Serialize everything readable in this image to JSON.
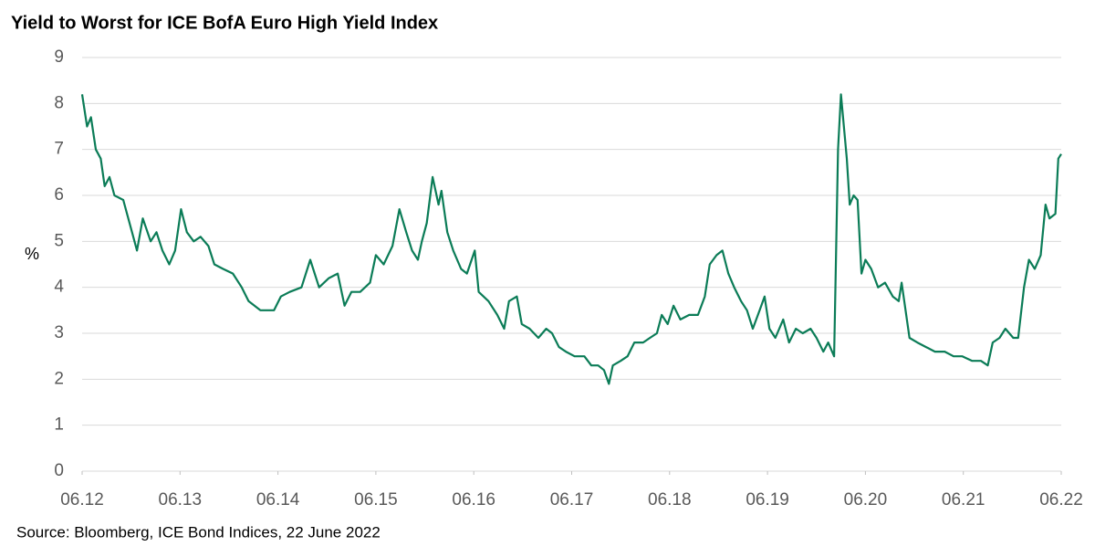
{
  "chart_data": {
    "type": "line",
    "title": "Yield to Worst for ICE BofA Euro High Yield Index",
    "y_label": "%",
    "source": "Source: Bloomberg, ICE Bond Indices, 22 June 2022",
    "color": "#0b7c57",
    "grid": true,
    "x": [
      2012.47,
      2012.52,
      2012.56,
      2012.61,
      2012.66,
      2012.7,
      2012.75,
      2012.8,
      2012.89,
      2012.98,
      2013.03,
      2013.09,
      2013.17,
      2013.23,
      2013.29,
      2013.36,
      2013.42,
      2013.48,
      2013.54,
      2013.61,
      2013.68,
      2013.76,
      2013.82,
      2013.91,
      2014.01,
      2014.1,
      2014.17,
      2014.29,
      2014.43,
      2014.5,
      2014.59,
      2014.71,
      2014.8,
      2014.89,
      2014.99,
      2015.08,
      2015.15,
      2015.22,
      2015.31,
      2015.41,
      2015.47,
      2015.55,
      2015.64,
      2015.71,
      2015.78,
      2015.84,
      2015.9,
      2015.94,
      2015.99,
      2016.05,
      2016.11,
      2016.14,
      2016.2,
      2016.26,
      2016.34,
      2016.4,
      2016.48,
      2016.52,
      2016.62,
      2016.71,
      2016.78,
      2016.83,
      2016.91,
      2016.96,
      2017.04,
      2017.13,
      2017.21,
      2017.27,
      2017.34,
      2017.41,
      2017.5,
      2017.6,
      2017.67,
      2017.74,
      2017.8,
      2017.85,
      2017.89,
      2017.97,
      2018.04,
      2018.11,
      2018.2,
      2018.27,
      2018.34,
      2018.39,
      2018.45,
      2018.51,
      2018.58,
      2018.67,
      2018.76,
      2018.83,
      2018.88,
      2018.95,
      2019.01,
      2019.07,
      2019.13,
      2019.2,
      2019.26,
      2019.32,
      2019.39,
      2019.44,
      2019.49,
      2019.55,
      2019.63,
      2019.69,
      2019.76,
      2019.83,
      2019.91,
      2019.97,
      2020.04,
      2020.09,
      2020.15,
      2020.19,
      2020.22,
      2020.25,
      2020.28,
      2020.31,
      2020.35,
      2020.39,
      2020.43,
      2020.47,
      2020.53,
      2020.6,
      2020.67,
      2020.75,
      2020.81,
      2020.84,
      2020.88,
      2020.92,
      2021.0,
      2021.09,
      2021.18,
      2021.28,
      2021.37,
      2021.46,
      2021.56,
      2021.65,
      2021.72,
      2021.77,
      2021.84,
      2021.9,
      2021.98,
      2022.03,
      2022.09,
      2022.14,
      2022.2,
      2022.26,
      2022.31,
      2022.35,
      2022.41,
      2022.44,
      2022.47
    ],
    "values": [
      8.2,
      7.5,
      7.7,
      7.0,
      6.8,
      6.2,
      6.4,
      6.0,
      5.9,
      5.2,
      4.8,
      5.5,
      5.0,
      5.2,
      4.8,
      4.5,
      4.8,
      5.7,
      5.2,
      5.0,
      5.1,
      4.9,
      4.5,
      4.4,
      4.3,
      4.0,
      3.7,
      3.5,
      3.5,
      3.8,
      3.9,
      4.0,
      4.6,
      4.0,
      4.2,
      4.3,
      3.6,
      3.9,
      3.9,
      4.1,
      4.7,
      4.5,
      4.9,
      5.7,
      5.2,
      4.8,
      4.6,
      5.0,
      5.4,
      6.4,
      5.8,
      6.1,
      5.2,
      4.8,
      4.4,
      4.3,
      4.8,
      3.9,
      3.7,
      3.4,
      3.1,
      3.7,
      3.8,
      3.2,
      3.1,
      2.9,
      3.1,
      3.0,
      2.7,
      2.6,
      2.5,
      2.5,
      2.3,
      2.3,
      2.2,
      1.9,
      2.3,
      2.4,
      2.5,
      2.8,
      2.8,
      2.9,
      3.0,
      3.4,
      3.2,
      3.6,
      3.3,
      3.4,
      3.4,
      3.8,
      4.5,
      4.7,
      4.8,
      4.3,
      4.0,
      3.7,
      3.5,
      3.1,
      3.5,
      3.8,
      3.1,
      2.9,
      3.3,
      2.8,
      3.1,
      3.0,
      3.1,
      2.9,
      2.6,
      2.8,
      2.5,
      7.0,
      8.2,
      7.5,
      6.8,
      5.8,
      6.0,
      5.9,
      4.3,
      4.6,
      4.4,
      4.0,
      4.1,
      3.8,
      3.7,
      4.1,
      3.5,
      2.9,
      2.8,
      2.7,
      2.6,
      2.6,
      2.5,
      2.5,
      2.4,
      2.4,
      2.3,
      2.8,
      2.9,
      3.1,
      2.9,
      2.9,
      4.0,
      4.6,
      4.4,
      4.7,
      5.8,
      5.5,
      5.6,
      6.8,
      6.9
    ],
    "xlim": [
      2012.47,
      2022.47
    ],
    "xticks": [
      {
        "value": 2012.47,
        "label": "06.12"
      },
      {
        "value": 2013.47,
        "label": "06.13"
      },
      {
        "value": 2014.47,
        "label": "06.14"
      },
      {
        "value": 2015.47,
        "label": "06.15"
      },
      {
        "value": 2016.47,
        "label": "06.16"
      },
      {
        "value": 2017.47,
        "label": "06.17"
      },
      {
        "value": 2018.47,
        "label": "06.18"
      },
      {
        "value": 2019.47,
        "label": "06.19"
      },
      {
        "value": 2020.47,
        "label": "06.20"
      },
      {
        "value": 2021.47,
        "label": "06.21"
      },
      {
        "value": 2022.47,
        "label": "06.22"
      }
    ],
    "ylim": [
      0,
      9
    ],
    "yticks": [
      0,
      1,
      2,
      3,
      4,
      5,
      6,
      7,
      8,
      9
    ]
  }
}
